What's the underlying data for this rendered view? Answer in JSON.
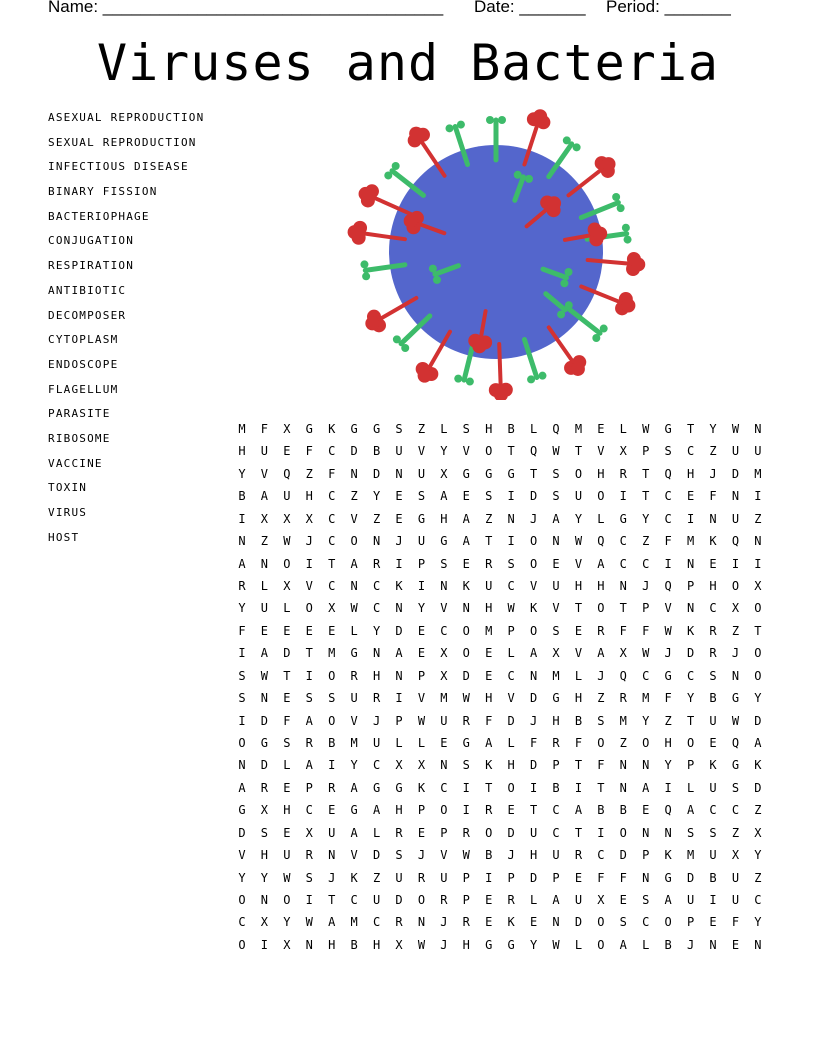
{
  "header": {
    "name_label": "Name: ____________________________________",
    "date_label": "Date: _______",
    "period_label": "Period: _______"
  },
  "title": "Viruses and Bacteria",
  "word_list": [
    "ASEXUAL REPRODUCTION",
    "SEXUAL REPRODUCTION",
    "INFECTIOUS DISEASE",
    "BINARY FISSION",
    "BACTERIOPHAGE",
    "CONJUGATION",
    "RESPIRATION",
    "ANTIBIOTIC",
    "DECOMPOSER",
    "CYTOPLASM",
    "ENDOSCOPE",
    "FLAGELLUM",
    "PARASITE",
    "RIBOSOME",
    "VACCINE",
    "TOXIN",
    "VIRUS",
    "HOST"
  ],
  "illustration": {
    "icon": "virus-illustration",
    "colors": {
      "body": "#5466cc",
      "spike_green": "#3dbb6a",
      "spike_red": "#d23232"
    }
  },
  "grid": [
    "MFXGKGGSZLSHBLQMELWGTYWN",
    "HUEFCDBUVYVOTQWTVXPSCZUU",
    "YVQZFNDNUXGGGTSOHRTQHJDM",
    "BAUHCZYESAESIDSUOITCEFNI",
    "IXXXCVZEGHAZNJAYLGYCINUZ",
    "NZWJCONJUGATIONWQCZFMKQN",
    "ANOITARIPSERSOEVACCINEII",
    "RLXVCNCKINKUCVUHHNJQPHOX",
    "YULOXWCNYVNHWKVTOTPVNCXO",
    "FEEEELYDECOMPOSERFFWKRZT",
    "IADTMGNAEXOELAXVAXWJDRJO",
    "SWTIORHNPXDECNMLJQCGCSNO",
    "SNESSURIVMWHVDGHZRMFYBGY",
    "IDFAOVJPWURFDJHBSMYZTUWD",
    "OGSRBMULLEGALFRFOZOHOEQA",
    "NDLAIYCXXNSKHDPTFNNYPKGK",
    "AREPRAGGKCITOIBITNAILUSD",
    "GXHCEGAHPOIRETCABBEQACCZ",
    "DSEXUALREPRODUCTIONNSSZX",
    "VHURNVDSJVWBJHURCDPKMUXY",
    "YYWSJKZURUPIPDPEFFNGDBUZ",
    "ONOITCUDORPERLAUXESAUIUC",
    "CXYWAMCRNJREKENDOSCOPEFY",
    "OIXNHBHXWJHGGYWLOALBJNEN"
  ]
}
